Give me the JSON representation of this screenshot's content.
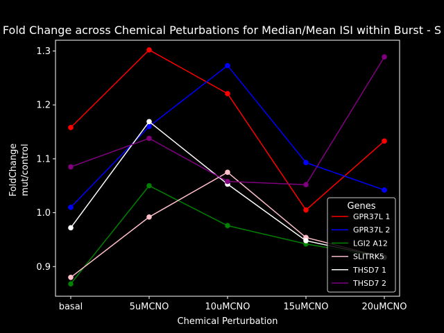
{
  "chart_data": {
    "type": "line",
    "title": "Fold Change across Chemical Peturbations for Median/Mean ISI within Burst - S",
    "xlabel": "Chemical Perturbation",
    "ylabel_line1": "FoldChange",
    "ylabel_line2": "mut/control",
    "categories": [
      "basal",
      "5uMCNO",
      "10uMCNO",
      "15uMCNO",
      "20uMCNO"
    ],
    "ylim": [
      0.845,
      1.32
    ],
    "yticks": [
      "0.9",
      "1.0",
      "1.1",
      "1.2",
      "1.3"
    ],
    "ytick_values": [
      0.9,
      1.0,
      1.1,
      1.2,
      1.3
    ],
    "legend_title": "Genes",
    "legend_position": "lower-right",
    "grid": false,
    "series": [
      {
        "name": "GPR37L 1",
        "color": "#ff0000",
        "values": [
          1.158,
          1.302,
          1.221,
          1.005,
          1.133
        ]
      },
      {
        "name": "GPR37L 2",
        "color": "#0000ff",
        "values": [
          1.01,
          1.16,
          1.273,
          1.093,
          1.042
        ]
      },
      {
        "name": "LGI2 A12",
        "color": "#008000",
        "values": [
          0.868,
          1.05,
          0.976,
          0.942,
          0.917
        ]
      },
      {
        "name": "SLITRK5",
        "color": "#ffc0cb",
        "values": [
          0.88,
          0.992,
          1.075,
          0.954,
          0.917
        ]
      },
      {
        "name": "THSD7 1",
        "color": "#ffffff",
        "values": [
          0.972,
          1.169,
          1.053,
          0.948,
          0.917
        ]
      },
      {
        "name": "THSD7 2",
        "color": "#800080",
        "values": [
          1.085,
          1.138,
          1.058,
          1.052,
          1.289
        ]
      }
    ]
  }
}
